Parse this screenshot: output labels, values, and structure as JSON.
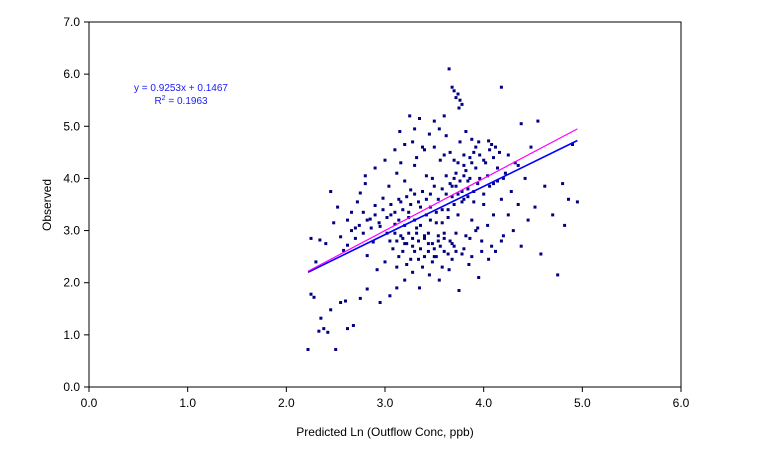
{
  "chart_data": {
    "type": "scatter",
    "xlabel": "Predicted Ln (Outflow Conc, ppb)",
    "ylabel": "Observed",
    "xlim": [
      0,
      6
    ],
    "ylim": [
      0,
      7
    ],
    "x_ticks": [
      "0.0",
      "1.0",
      "2.0",
      "3.0",
      "4.0",
      "5.0",
      "6.0"
    ],
    "y_ticks": [
      "0.0",
      "1.0",
      "2.0",
      "3.0",
      "4.0",
      "5.0",
      "6.0",
      "7.0"
    ],
    "grid": false,
    "legend": "none",
    "colors": {
      "points": "#000080",
      "regression_line": "#0000ff",
      "one_to_one_line": "#ff00ff",
      "equation_text": "#1a1aff"
    },
    "annotation": {
      "equation": "y = 0.9253x + 0.1467",
      "r2_label": "R",
      "r2_exp": "2",
      "r2_value": " = 0.1963"
    },
    "lines": [
      {
        "kind": "regression",
        "x": [
          2.22,
          4.95
        ],
        "y": [
          2.201,
          4.727
        ]
      },
      {
        "kind": "one_to_one",
        "x": [
          2.22,
          4.95
        ],
        "y": [
          2.22,
          4.95
        ]
      }
    ],
    "series": [
      {
        "points": [
          [
            2.22,
            0.72
          ],
          [
            2.5,
            0.72
          ],
          [
            2.33,
            1.07
          ],
          [
            2.38,
            1.12
          ],
          [
            2.42,
            1.05
          ],
          [
            2.62,
            1.12
          ],
          [
            2.68,
            1.18
          ],
          [
            2.35,
            1.32
          ],
          [
            2.25,
            1.78
          ],
          [
            2.28,
            1.72
          ],
          [
            2.45,
            1.48
          ],
          [
            2.55,
            1.62
          ],
          [
            2.6,
            1.65
          ],
          [
            2.75,
            1.7
          ],
          [
            2.82,
            1.88
          ],
          [
            2.95,
            1.62
          ],
          [
            3.05,
            1.75
          ],
          [
            3.12,
            1.9
          ],
          [
            2.25,
            2.85
          ],
          [
            2.3,
            2.4
          ],
          [
            2.34,
            2.82
          ],
          [
            2.4,
            2.75
          ],
          [
            2.45,
            3.75
          ],
          [
            2.48,
            3.15
          ],
          [
            2.52,
            3.45
          ],
          [
            2.55,
            2.88
          ],
          [
            2.58,
            2.62
          ],
          [
            2.62,
            2.72
          ],
          [
            2.66,
            3.35
          ],
          [
            2.7,
            3.05
          ],
          [
            2.72,
            3.55
          ],
          [
            2.75,
            3.72
          ],
          [
            2.78,
            2.95
          ],
          [
            2.8,
            3.9
          ],
          [
            2.82,
            2.52
          ],
          [
            2.85,
            3.22
          ],
          [
            2.88,
            2.78
          ],
          [
            2.9,
            3.48
          ],
          [
            2.92,
            2.25
          ],
          [
            2.95,
            3.08
          ],
          [
            2.98,
            3.62
          ],
          [
            3.0,
            2.4
          ],
          [
            3.02,
            2.95
          ],
          [
            3.04,
            3.85
          ],
          [
            3.06,
            3.3
          ],
          [
            3.08,
            2.65
          ],
          [
            3.1,
            3.12
          ],
          [
            3.12,
            4.1
          ],
          [
            3.14,
            2.5
          ],
          [
            3.16,
            3.55
          ],
          [
            3.18,
            2.85
          ],
          [
            3.2,
            3.95
          ],
          [
            3.22,
            2.35
          ],
          [
            3.24,
            3.25
          ],
          [
            3.26,
            3.78
          ],
          [
            3.28,
            2.7
          ],
          [
            3.3,
            4.25
          ],
          [
            3.32,
            3.05
          ],
          [
            3.34,
            2.45
          ],
          [
            3.36,
            3.45
          ],
          [
            3.38,
            4.6
          ],
          [
            3.4,
            2.9
          ],
          [
            3.42,
            3.6
          ],
          [
            3.44,
            2.6
          ],
          [
            3.46,
            3.2
          ],
          [
            3.48,
            4.0
          ],
          [
            3.5,
            2.5
          ],
          [
            3.52,
            3.35
          ],
          [
            3.54,
            2.8
          ],
          [
            3.56,
            4.35
          ],
          [
            3.58,
            3.15
          ],
          [
            3.6,
            2.95
          ],
          [
            3.62,
            3.7
          ],
          [
            3.64,
            3.4
          ],
          [
            3.66,
            4.5
          ],
          [
            3.68,
            3.85
          ],
          [
            3.7,
            2.7
          ],
          [
            3.72,
            4.1
          ],
          [
            3.74,
            3.3
          ],
          [
            3.76,
            4.7
          ],
          [
            3.78,
            3.55
          ],
          [
            3.8,
            4.25
          ],
          [
            3.82,
            2.9
          ],
          [
            3.84,
            3.95
          ],
          [
            3.86,
            4.4
          ],
          [
            3.88,
            3.2
          ],
          [
            3.9,
            3.75
          ],
          [
            3.92,
            4.6
          ],
          [
            3.94,
            3.05
          ],
          [
            3.96,
            4.0
          ],
          [
            3.98,
            2.8
          ],
          [
            4.0,
            3.5
          ],
          [
            4.02,
            4.3
          ],
          [
            4.04,
            3.1
          ],
          [
            4.06,
            3.85
          ],
          [
            4.08,
            4.65
          ],
          [
            4.1,
            3.3
          ],
          [
            4.12,
            2.6
          ],
          [
            4.14,
            3.95
          ],
          [
            4.16,
            4.5
          ],
          [
            4.18,
            3.6
          ],
          [
            4.2,
            2.9
          ],
          [
            4.22,
            4.1
          ],
          [
            4.25,
            3.3
          ],
          [
            4.28,
            3.75
          ],
          [
            4.3,
            3.0
          ],
          [
            4.32,
            4.3
          ],
          [
            4.35,
            3.5
          ],
          [
            4.38,
            2.7
          ],
          [
            4.42,
            4.0
          ],
          [
            4.45,
            3.2
          ],
          [
            4.48,
            4.6
          ],
          [
            4.52,
            3.45
          ],
          [
            4.55,
            5.1
          ],
          [
            4.58,
            2.55
          ],
          [
            4.62,
            3.85
          ],
          [
            4.7,
            3.3
          ],
          [
            4.75,
            2.15
          ],
          [
            4.8,
            3.9
          ],
          [
            4.82,
            3.1
          ],
          [
            4.86,
            3.6
          ],
          [
            4.9,
            4.65
          ],
          [
            4.95,
            3.55
          ],
          [
            3.68,
            5.75
          ],
          [
            3.7,
            5.68
          ],
          [
            3.72,
            5.55
          ],
          [
            3.74,
            5.62
          ],
          [
            3.76,
            5.5
          ],
          [
            3.78,
            5.42
          ],
          [
            3.75,
            5.35
          ],
          [
            3.65,
            6.1
          ],
          [
            4.18,
            5.75
          ],
          [
            4.38,
            5.05
          ],
          [
            3.25,
            5.2
          ],
          [
            3.35,
            5.15
          ],
          [
            3.5,
            5.1
          ],
          [
            3.55,
            4.95
          ],
          [
            3.6,
            5.2
          ],
          [
            3.45,
            4.85
          ],
          [
            3.3,
            4.95
          ],
          [
            3.15,
            4.9
          ],
          [
            3.62,
            4.82
          ],
          [
            3.82,
            4.9
          ],
          [
            3.88,
            4.75
          ],
          [
            3.95,
            4.7
          ],
          [
            4.05,
            4.72
          ],
          [
            4.12,
            4.6
          ],
          [
            4.25,
            4.45
          ],
          [
            4.35,
            4.25
          ],
          [
            3.1,
            4.55
          ],
          [
            3.0,
            4.35
          ],
          [
            2.9,
            4.2
          ],
          [
            2.8,
            4.05
          ],
          [
            3.35,
            1.9
          ],
          [
            3.45,
            2.15
          ],
          [
            3.55,
            2.05
          ],
          [
            3.65,
            2.25
          ],
          [
            3.75,
            1.85
          ],
          [
            3.85,
            2.35
          ],
          [
            3.95,
            2.1
          ],
          [
            4.05,
            2.45
          ],
          [
            3.2,
            2.05
          ],
          [
            3.28,
            2.2
          ],
          [
            3.38,
            2.3
          ],
          [
            3.48,
            2.4
          ],
          [
            3.58,
            2.3
          ],
          [
            3.68,
            2.45
          ],
          [
            3.78,
            2.55
          ],
          [
            3.88,
            2.5
          ],
          [
            3.98,
            2.6
          ],
          [
            4.08,
            2.7
          ],
          [
            4.18,
            2.8
          ],
          [
            3.12,
            2.3
          ],
          [
            3.18,
            2.6
          ],
          [
            3.22,
            2.75
          ],
          [
            3.26,
            2.45
          ],
          [
            3.3,
            2.6
          ],
          [
            3.34,
            2.8
          ],
          [
            3.4,
            2.5
          ],
          [
            3.44,
            2.75
          ],
          [
            3.5,
            2.65
          ],
          [
            3.54,
            2.9
          ],
          [
            3.6,
            2.6
          ],
          [
            3.66,
            2.8
          ],
          [
            3.72,
            2.95
          ],
          [
            3.8,
            2.65
          ],
          [
            3.86,
            2.85
          ],
          [
            3.92,
            3.0
          ],
          [
            3.05,
            2.8
          ],
          [
            3.1,
            2.95
          ],
          [
            3.14,
            3.2
          ],
          [
            3.2,
            3.1
          ],
          [
            3.24,
            3.35
          ],
          [
            3.3,
            3.2
          ],
          [
            3.36,
            3.1
          ],
          [
            3.42,
            3.3
          ],
          [
            3.46,
            3.45
          ],
          [
            3.52,
            3.15
          ],
          [
            3.58,
            3.4
          ],
          [
            3.64,
            3.25
          ],
          [
            3.7,
            3.5
          ],
          [
            3.74,
            3.7
          ],
          [
            3.8,
            3.6
          ],
          [
            3.84,
            3.8
          ],
          [
            3.9,
            3.55
          ],
          [
            3.94,
            3.9
          ],
          [
            4.0,
            3.7
          ],
          [
            4.04,
            4.05
          ],
          [
            4.1,
            3.9
          ],
          [
            4.14,
            4.2
          ],
          [
            4.2,
            4.0
          ],
          [
            3.76,
            3.95
          ],
          [
            3.8,
            4.05
          ],
          [
            3.72,
            3.85
          ],
          [
            3.78,
            3.75
          ],
          [
            3.82,
            4.15
          ],
          [
            3.7,
            4.0
          ],
          [
            3.66,
            3.9
          ],
          [
            3.86,
            4.0
          ],
          [
            3.74,
            4.3
          ],
          [
            3.84,
            3.65
          ],
          [
            3.68,
            3.65
          ],
          [
            3.62,
            4.05
          ],
          [
            3.58,
            3.8
          ],
          [
            3.54,
            3.6
          ],
          [
            3.5,
            3.85
          ],
          [
            3.46,
            3.7
          ],
          [
            3.42,
            4.05
          ],
          [
            3.38,
            3.75
          ],
          [
            3.34,
            3.55
          ],
          [
            3.3,
            3.7
          ],
          [
            3.26,
            3.5
          ],
          [
            3.22,
            3.65
          ],
          [
            3.18,
            3.4
          ],
          [
            3.14,
            3.6
          ],
          [
            3.1,
            3.35
          ],
          [
            3.06,
            3.5
          ],
          [
            3.02,
            3.25
          ],
          [
            2.98,
            3.4
          ],
          [
            2.94,
            3.15
          ],
          [
            2.9,
            3.3
          ],
          [
            2.86,
            3.05
          ],
          [
            2.82,
            3.2
          ],
          [
            2.78,
            3.35
          ],
          [
            2.74,
            3.1
          ],
          [
            2.7,
            2.85
          ],
          [
            2.66,
            3.0
          ],
          [
            2.62,
            3.2
          ],
          [
            3.88,
            4.3
          ],
          [
            3.92,
            4.2
          ],
          [
            3.96,
            4.45
          ],
          [
            4.0,
            4.35
          ],
          [
            4.06,
            4.55
          ],
          [
            4.1,
            4.4
          ],
          [
            3.9,
            4.5
          ],
          [
            3.8,
            4.45
          ],
          [
            3.7,
            4.35
          ],
          [
            3.6,
            4.45
          ],
          [
            3.5,
            4.6
          ],
          [
            3.4,
            4.55
          ],
          [
            3.32,
            4.4
          ],
          [
            3.28,
            4.7
          ],
          [
            3.2,
            4.65
          ],
          [
            3.16,
            4.3
          ],
          [
            3.12,
            2.8
          ],
          [
            3.16,
            2.9
          ],
          [
            3.2,
            2.75
          ],
          [
            3.24,
            2.95
          ],
          [
            3.28,
            2.85
          ],
          [
            3.32,
            2.95
          ],
          [
            3.36,
            2.65
          ],
          [
            3.4,
            2.85
          ],
          [
            3.44,
            2.95
          ],
          [
            3.48,
            2.75
          ],
          [
            3.52,
            2.5
          ],
          [
            3.56,
            2.7
          ],
          [
            3.6,
            2.85
          ],
          [
            3.64,
            2.55
          ],
          [
            3.68,
            2.75
          ],
          [
            3.72,
            2.6
          ]
        ]
      }
    ]
  }
}
